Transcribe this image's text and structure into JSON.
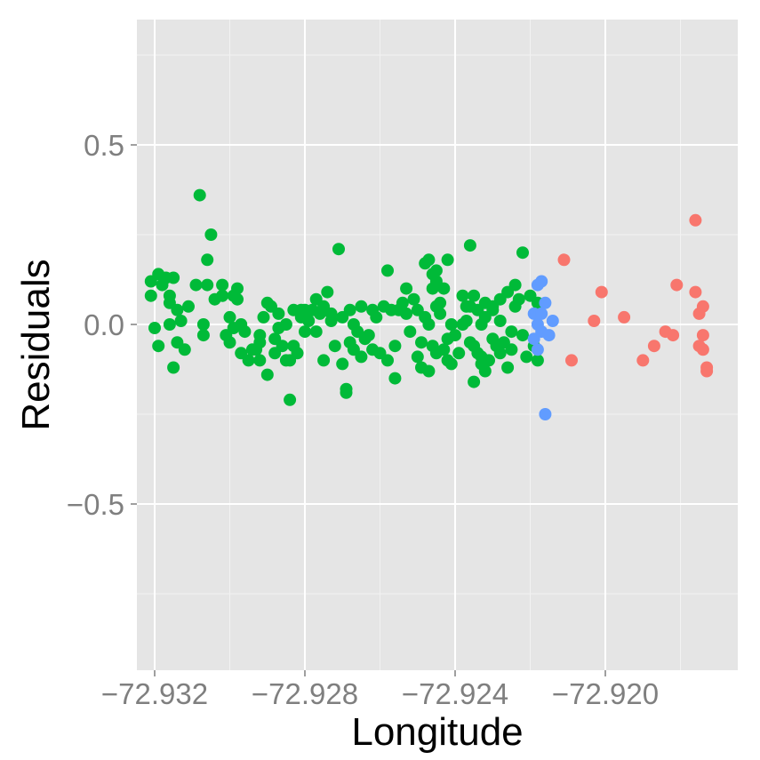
{
  "chart_data": {
    "type": "scatter",
    "xlabel": "Longitude",
    "ylabel": "Residuals",
    "xlim": [
      -72.9325,
      -72.917
    ],
    "ylim": [
      -0.95,
      0.85
    ],
    "grid": true,
    "x_ticks": [
      -72.932,
      -72.928,
      -72.924,
      -72.92
    ],
    "x_tick_labels": [
      "−72.932",
      "−72.928",
      "−72.924",
      "−72.920"
    ],
    "y_ticks": [
      0.5,
      0.0,
      -0.5
    ],
    "y_tick_labels": [
      "0.5",
      "0.0",
      "−0.5"
    ],
    "colors": {
      "panel": "#e5e5e5",
      "grid_major": "#ffffff",
      "grid_minor": "#f2f2f2"
    },
    "series": [
      {
        "color": "#00ba38",
        "points": [
          [
            -72.9321,
            0.08
          ],
          [
            -72.9321,
            0.12
          ],
          [
            -72.932,
            -0.01
          ],
          [
            -72.9319,
            0.14
          ],
          [
            -72.9319,
            -0.06
          ],
          [
            -72.9318,
            0.11
          ],
          [
            -72.9317,
            0.13
          ],
          [
            -72.9316,
            0.06
          ],
          [
            -72.9316,
            0.08
          ],
          [
            -72.9315,
            0.13
          ],
          [
            -72.9316,
            0.0
          ],
          [
            -72.9315,
            -0.12
          ],
          [
            -72.9313,
            0.01
          ],
          [
            -72.9314,
            0.04
          ],
          [
            -72.9314,
            -0.05
          ],
          [
            -72.9312,
            -0.07
          ],
          [
            -72.9311,
            0.05
          ],
          [
            -72.9309,
            0.11
          ],
          [
            -72.9308,
            0.36
          ],
          [
            -72.9307,
            0.0
          ],
          [
            -72.9307,
            -0.03
          ],
          [
            -72.9306,
            0.11
          ],
          [
            -72.9306,
            0.18
          ],
          [
            -72.9305,
            0.25
          ],
          [
            -72.9304,
            0.07
          ],
          [
            -72.9302,
            0.08
          ],
          [
            -72.9302,
            0.11
          ],
          [
            -72.9301,
            -0.03
          ],
          [
            -72.93,
            -0.05
          ],
          [
            -72.93,
            0.02
          ],
          [
            -72.9299,
            -0.01
          ],
          [
            -72.9299,
            0.08
          ],
          [
            -72.9298,
            0.07
          ],
          [
            -72.9298,
            0.1
          ],
          [
            -72.9297,
            0.0
          ],
          [
            -72.9297,
            -0.08
          ],
          [
            -72.9296,
            -0.02
          ],
          [
            -72.9295,
            -0.1
          ],
          [
            -72.9294,
            -0.07
          ],
          [
            -72.9293,
            -0.07
          ],
          [
            -72.9292,
            -0.1
          ],
          [
            -72.9292,
            -0.05
          ],
          [
            -72.9292,
            -0.03
          ],
          [
            -72.9291,
            0.02
          ],
          [
            -72.929,
            -0.14
          ],
          [
            -72.929,
            0.06
          ],
          [
            -72.9289,
            0.05
          ],
          [
            -72.9288,
            -0.08
          ],
          [
            -72.9288,
            -0.04
          ],
          [
            -72.9287,
            -0.01
          ],
          [
            -72.9287,
            0.03
          ],
          [
            -72.9286,
            -0.06
          ],
          [
            -72.9285,
            -0.1
          ],
          [
            -72.9285,
            0.0
          ],
          [
            -72.9284,
            -0.21
          ],
          [
            -72.9284,
            -0.1
          ],
          [
            -72.9283,
            0.04
          ],
          [
            -72.9283,
            -0.06
          ],
          [
            -72.9282,
            -0.08
          ],
          [
            -72.9281,
            0.04
          ],
          [
            -72.9281,
            0.02
          ],
          [
            -72.928,
            0.04
          ],
          [
            -72.928,
            -0.02
          ],
          [
            -72.9279,
            0.01
          ],
          [
            -72.9278,
            0.04
          ],
          [
            -72.9277,
            0.07
          ],
          [
            -72.9277,
            -0.02
          ],
          [
            -72.9276,
            0.03
          ],
          [
            -72.9275,
            -0.1
          ],
          [
            -72.9275,
            0.05
          ],
          [
            -72.9274,
            0.09
          ],
          [
            -72.9273,
            0.03
          ],
          [
            -72.9273,
            0.01
          ],
          [
            -72.9272,
            -0.06
          ],
          [
            -72.9271,
            0.21
          ],
          [
            -72.927,
            -0.11
          ],
          [
            -72.927,
            0.02
          ],
          [
            -72.9269,
            -0.19
          ],
          [
            -72.9269,
            -0.18
          ],
          [
            -72.9268,
            0.04
          ],
          [
            -72.9268,
            -0.05
          ],
          [
            -72.9267,
            0.0
          ],
          [
            -72.9267,
            -0.07
          ],
          [
            -72.9266,
            -0.02
          ],
          [
            -72.9265,
            0.05
          ],
          [
            -72.9265,
            -0.09
          ],
          [
            -72.9264,
            -0.04
          ],
          [
            -72.9263,
            -0.03
          ],
          [
            -72.9262,
            0.04
          ],
          [
            -72.9262,
            -0.07
          ],
          [
            -72.9261,
            0.02
          ],
          [
            -72.926,
            -0.08
          ],
          [
            -72.9259,
            0.05
          ],
          [
            -72.9258,
            -0.1
          ],
          [
            -72.9258,
            0.15
          ],
          [
            -72.9257,
            0.04
          ],
          [
            -72.9256,
            -0.15
          ],
          [
            -72.9256,
            -0.06
          ],
          [
            -72.9255,
            0.04
          ],
          [
            -72.9254,
            0.06
          ],
          [
            -72.9253,
            0.1
          ],
          [
            -72.9253,
            0.03
          ],
          [
            -72.9252,
            -0.02
          ],
          [
            -72.9251,
            0.07
          ],
          [
            -72.925,
            -0.09
          ],
          [
            -72.925,
            0.04
          ],
          [
            -72.9249,
            -0.12
          ],
          [
            -72.9249,
            -0.05
          ],
          [
            -72.9248,
            0.02
          ],
          [
            -72.9247,
            0.0
          ],
          [
            -72.9247,
            -0.13
          ],
          [
            -72.9246,
            -0.06
          ],
          [
            -72.9245,
            -0.08
          ],
          [
            -72.9245,
            0.15
          ],
          [
            -72.9244,
            0.06
          ],
          [
            -72.9243,
            0.1
          ],
          [
            -72.9242,
            -0.04
          ],
          [
            -72.9242,
            0.18
          ],
          [
            -72.9241,
            -0.11
          ],
          [
            -72.924,
            -0.03
          ],
          [
            -72.9239,
            -0.08
          ],
          [
            -72.9238,
            0.08
          ],
          [
            -72.9238,
            0.0
          ],
          [
            -72.9237,
            0.01
          ],
          [
            -72.9236,
            -0.05
          ],
          [
            -72.9235,
            -0.16
          ],
          [
            -72.9235,
            0.08
          ],
          [
            -72.9234,
            -0.08
          ],
          [
            -72.9233,
            0.0
          ],
          [
            -72.9232,
            -0.13
          ],
          [
            -72.9232,
            0.06
          ],
          [
            -72.9231,
            -0.1
          ],
          [
            -72.923,
            -0.04
          ],
          [
            -72.923,
            0.04
          ],
          [
            -72.9229,
            -0.06
          ],
          [
            -72.9228,
            -0.08
          ],
          [
            -72.9228,
            0.01
          ],
          [
            -72.9227,
            -0.05
          ],
          [
            -72.9226,
            -0.12
          ],
          [
            -72.9225,
            -0.02
          ],
          [
            -72.9225,
            -0.07
          ],
          [
            -72.9224,
            0.05
          ],
          [
            -72.9223,
            0.07
          ],
          [
            -72.9222,
            -0.03
          ],
          [
            -72.9221,
            -0.09
          ],
          [
            -72.922,
            0.08
          ],
          [
            -72.9219,
            -0.06
          ],
          [
            -72.9218,
            0.06
          ],
          [
            -72.9218,
            -0.1
          ],
          [
            -72.9248,
            0.17
          ],
          [
            -72.9247,
            0.18
          ],
          [
            -72.9246,
            0.1
          ],
          [
            -72.9245,
            0.12
          ],
          [
            -72.9244,
            0.03
          ],
          [
            -72.9243,
            -0.07
          ],
          [
            -72.9242,
            -0.1
          ],
          [
            -72.9241,
            0.0
          ],
          [
            -72.9246,
            0.14
          ],
          [
            -72.9245,
            0.05
          ],
          [
            -72.9237,
            0.05
          ],
          [
            -72.9236,
            0.05
          ],
          [
            -72.9235,
            -0.06
          ],
          [
            -72.9234,
            0.04
          ],
          [
            -72.9233,
            -0.11
          ],
          [
            -72.9232,
            0.02
          ],
          [
            -72.923,
            0.05
          ],
          [
            -72.9228,
            0.07
          ],
          [
            -72.9226,
            0.09
          ],
          [
            -72.9224,
            0.11
          ],
          [
            -72.9222,
            0.2
          ],
          [
            -72.9236,
            0.22
          ],
          [
            -72.9233,
            -0.09
          ]
        ]
      },
      {
        "color": "#619cff",
        "points": [
          [
            -72.9219,
            0.03
          ],
          [
            -72.9219,
            -0.04
          ],
          [
            -72.9218,
            0.11
          ],
          [
            -72.9218,
            0.0
          ],
          [
            -72.9218,
            -0.07
          ],
          [
            -72.9217,
            0.12
          ],
          [
            -72.9217,
            0.03
          ],
          [
            -72.9217,
            -0.02
          ],
          [
            -72.9216,
            0.06
          ],
          [
            -72.9216,
            -0.25
          ],
          [
            -72.9215,
            -0.03
          ],
          [
            -72.9214,
            0.01
          ]
        ]
      },
      {
        "color": "#f8766d",
        "points": [
          [
            -72.9211,
            0.18
          ],
          [
            -72.9209,
            -0.1
          ],
          [
            -72.9203,
            0.01
          ],
          [
            -72.9201,
            0.09
          ],
          [
            -72.9195,
            0.02
          ],
          [
            -72.919,
            -0.1
          ],
          [
            -72.9187,
            -0.06
          ],
          [
            -72.9184,
            -0.02
          ],
          [
            -72.9182,
            -0.03
          ],
          [
            -72.9181,
            0.11
          ],
          [
            -72.9176,
            0.29
          ],
          [
            -72.9176,
            0.09
          ],
          [
            -72.9175,
            0.03
          ],
          [
            -72.9175,
            -0.06
          ],
          [
            -72.9174,
            -0.03
          ],
          [
            -72.9174,
            0.05
          ],
          [
            -72.9174,
            -0.07
          ],
          [
            -72.9173,
            -0.13
          ],
          [
            -72.9173,
            -0.12
          ]
        ]
      }
    ]
  }
}
